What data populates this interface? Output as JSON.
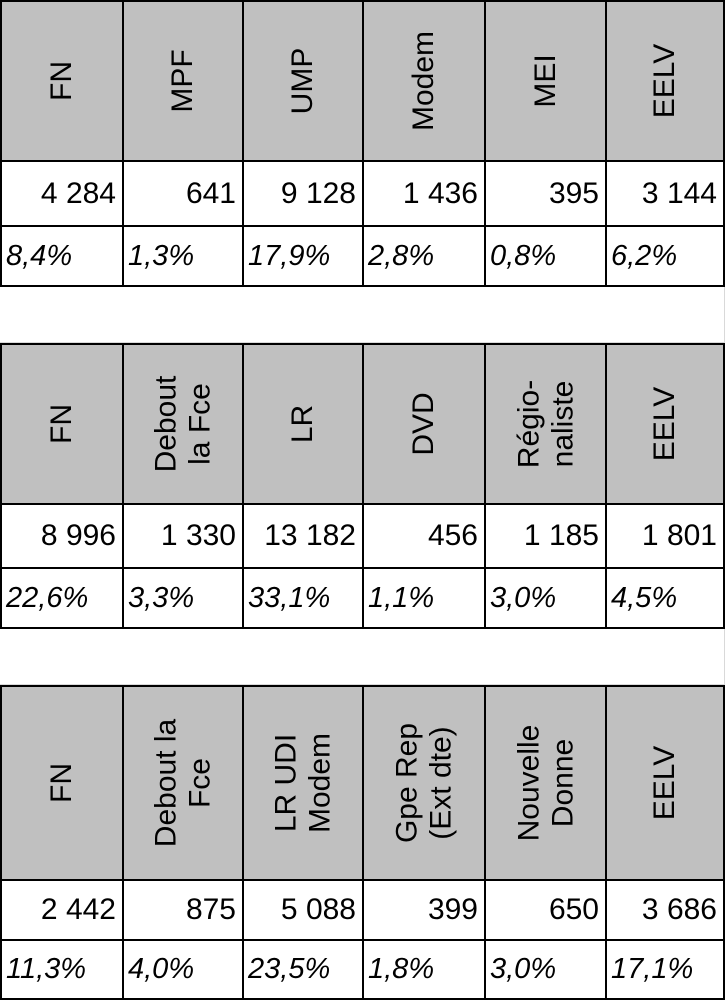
{
  "tables": [
    {
      "headers": [
        "FN",
        "MPF",
        "UMP",
        "Modem",
        "MEI",
        "EELV"
      ],
      "counts": [
        "4 284",
        "641",
        "9 128",
        "1 436",
        "395",
        "3 144"
      ],
      "percents": [
        "8,4%",
        "1,3%",
        "17,9%",
        "2,8%",
        "0,8%",
        "6,2%"
      ]
    },
    {
      "headers": [
        "FN",
        "Debout\nla Fce",
        "LR",
        "DVD",
        "Régio-\nnaliste",
        "EELV"
      ],
      "counts": [
        "8 996",
        "1 330",
        "13 182",
        "456",
        "1 185",
        "1 801"
      ],
      "percents": [
        "22,6%",
        "3,3%",
        "33,1%",
        "1,1%",
        "3,0%",
        "4,5%"
      ]
    },
    {
      "headers": [
        "FN",
        "Debout la\nFce",
        "LR UDI\nModem",
        "Gpe Rep\n(Ext dte)",
        "Nouvelle\nDonne",
        "EELV"
      ],
      "counts": [
        "2 442",
        "875",
        "5 088",
        "399",
        "650",
        "3 686"
      ],
      "percents": [
        "11,3%",
        "4,0%",
        "23,5%",
        "1,8%",
        "3,0%",
        "17,1%"
      ]
    }
  ]
}
